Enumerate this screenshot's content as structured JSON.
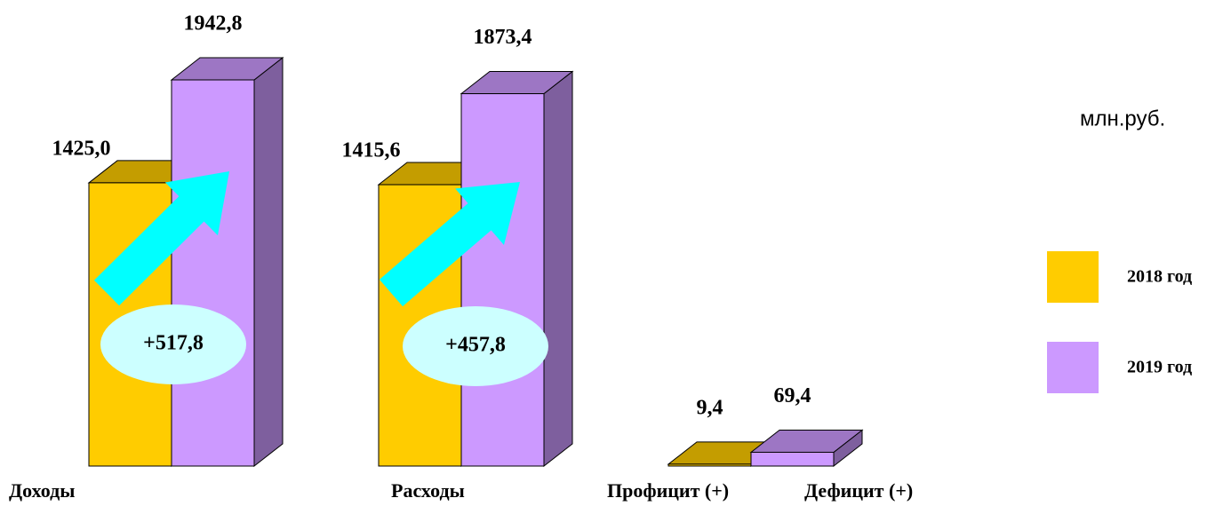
{
  "chart_data": {
    "type": "bar3d",
    "categories": [
      "Доходы",
      "Расходы",
      [
        "Профицит (+)",
        "Дефицит (+)"
      ]
    ],
    "series": [
      {
        "name": "2018 год",
        "color": "#ffcc00",
        "values": [
          1425.0,
          1415.6,
          9.4
        ],
        "value_labels": [
          "1425,0",
          "1415,6",
          "9,4"
        ]
      },
      {
        "name": "2019 год",
        "color": "#cc99ff",
        "values": [
          1942.8,
          1873.4,
          69.4
        ],
        "value_labels": [
          "1942,8",
          "1873,4",
          "69,4"
        ]
      }
    ],
    "annotations": [
      "+517,8",
      "+457,8"
    ],
    "unit": "млн.руб.",
    "legend": "right"
  }
}
